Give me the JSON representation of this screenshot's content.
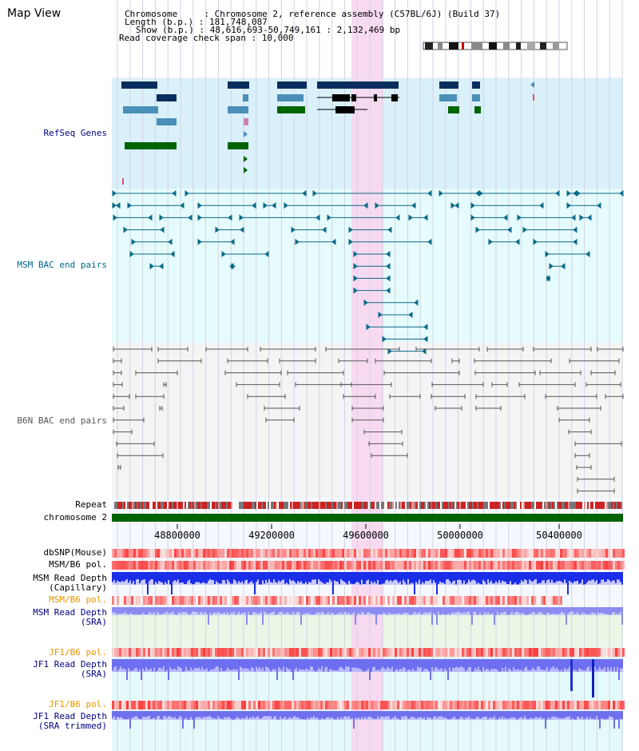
{
  "app": {
    "title": "Map View"
  },
  "header": {
    "chromosome_line": "Chromosome     : Chromosome 2, reference assembly (C57BL/6J) (Build 37)",
    "length_line": "Length (b.p.) : 181,748,087",
    "show_line": "Show (b.p.) : 48,616,693-50,749,161 : 2,132,469 bp",
    "coverage_line": "Read coverage check span : 10,000"
  },
  "tracks": {
    "refseq": "RefSeq Genes",
    "msm_bac": "MSM BAC end pairs",
    "b6n_bac": "B6N BAC end pairs",
    "repeat": "Repeat",
    "chromosome": "chromosome 2",
    "dbsnp": "dbSNP(Mouse)",
    "msm_b6_pol": "MSM/B6 pol.",
    "msm_read_depth": "MSM Read Depth",
    "capillary": "(Capillary)",
    "msm_b6_pol2": "MSM/B6 pol.",
    "msm_read_depth2": "MSM Read Depth",
    "sra": "(SRA)",
    "jf1_b6_pol": "JF1/B6 pol.",
    "jf1_read_depth": "JF1 Read Depth",
    "sra2": "(SRA)",
    "jf1_b6_pol2": "JF1/B6 pol.",
    "jf1_read_depth2": "JF1 Read Depth",
    "sra_trimmed": "(SRA trimmed)"
  },
  "axis": {
    "ticks": [
      "48800000",
      "49200000",
      "49600000",
      "50000000",
      "50400000"
    ]
  },
  "colors": {
    "refseq_bg": "#daf0fa",
    "msm_bg": "#e6fbfb",
    "b6n_bg": "#f4f4f4",
    "highlight": "#f8d8f0",
    "chromosome": "#006400",
    "label_navy": "#000080",
    "label_teal": "#006688",
    "label_orange": "#e69500"
  }
}
